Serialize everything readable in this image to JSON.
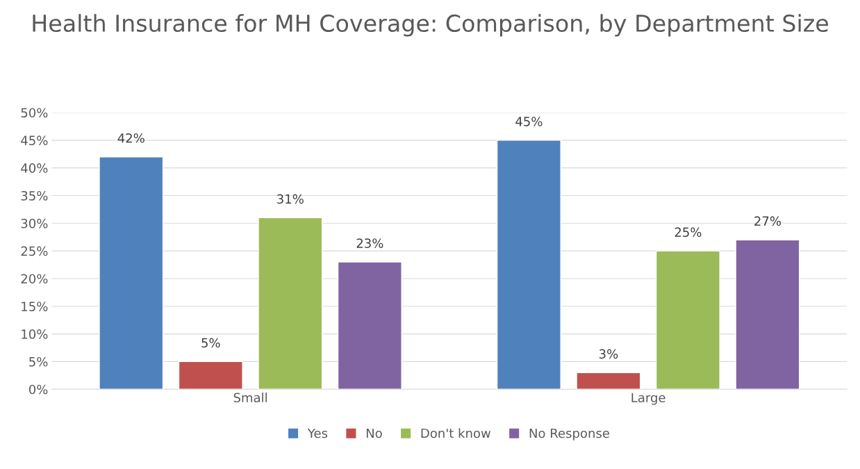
{
  "chart_data": {
    "type": "bar",
    "title": "Health Insurance for MH Coverage: Comparison, by Department Size",
    "categories": [
      "Small",
      "Large"
    ],
    "series": [
      {
        "name": "Yes",
        "color": "#4f81bd",
        "values": [
          42,
          45
        ],
        "value_labels": [
          "42%",
          "45%"
        ]
      },
      {
        "name": "No",
        "color": "#c0504d",
        "values": [
          5,
          3
        ],
        "value_labels": [
          "5%",
          "3%"
        ]
      },
      {
        "name": "Don't know",
        "color": "#9bbb59",
        "values": [
          31,
          25
        ],
        "value_labels": [
          "31%",
          "25%"
        ]
      },
      {
        "name": "No Response",
        "color": "#8064a2",
        "values": [
          23,
          27
        ],
        "value_labels": [
          "23%",
          "27%"
        ]
      }
    ],
    "ylim": [
      0,
      50
    ],
    "yticks": [
      {
        "value": 0,
        "label": "0%"
      },
      {
        "value": 5,
        "label": "5%"
      },
      {
        "value": 10,
        "label": "10%"
      },
      {
        "value": 15,
        "label": "15%"
      },
      {
        "value": 20,
        "label": "20%"
      },
      {
        "value": 25,
        "label": "25%"
      },
      {
        "value": 30,
        "label": "30%"
      },
      {
        "value": 35,
        "label": "35%"
      },
      {
        "value": 40,
        "label": "40%"
      },
      {
        "value": 45,
        "label": "45%"
      },
      {
        "value": 50,
        "label": "50%"
      }
    ],
    "grid": "y",
    "legend": "bottom"
  }
}
